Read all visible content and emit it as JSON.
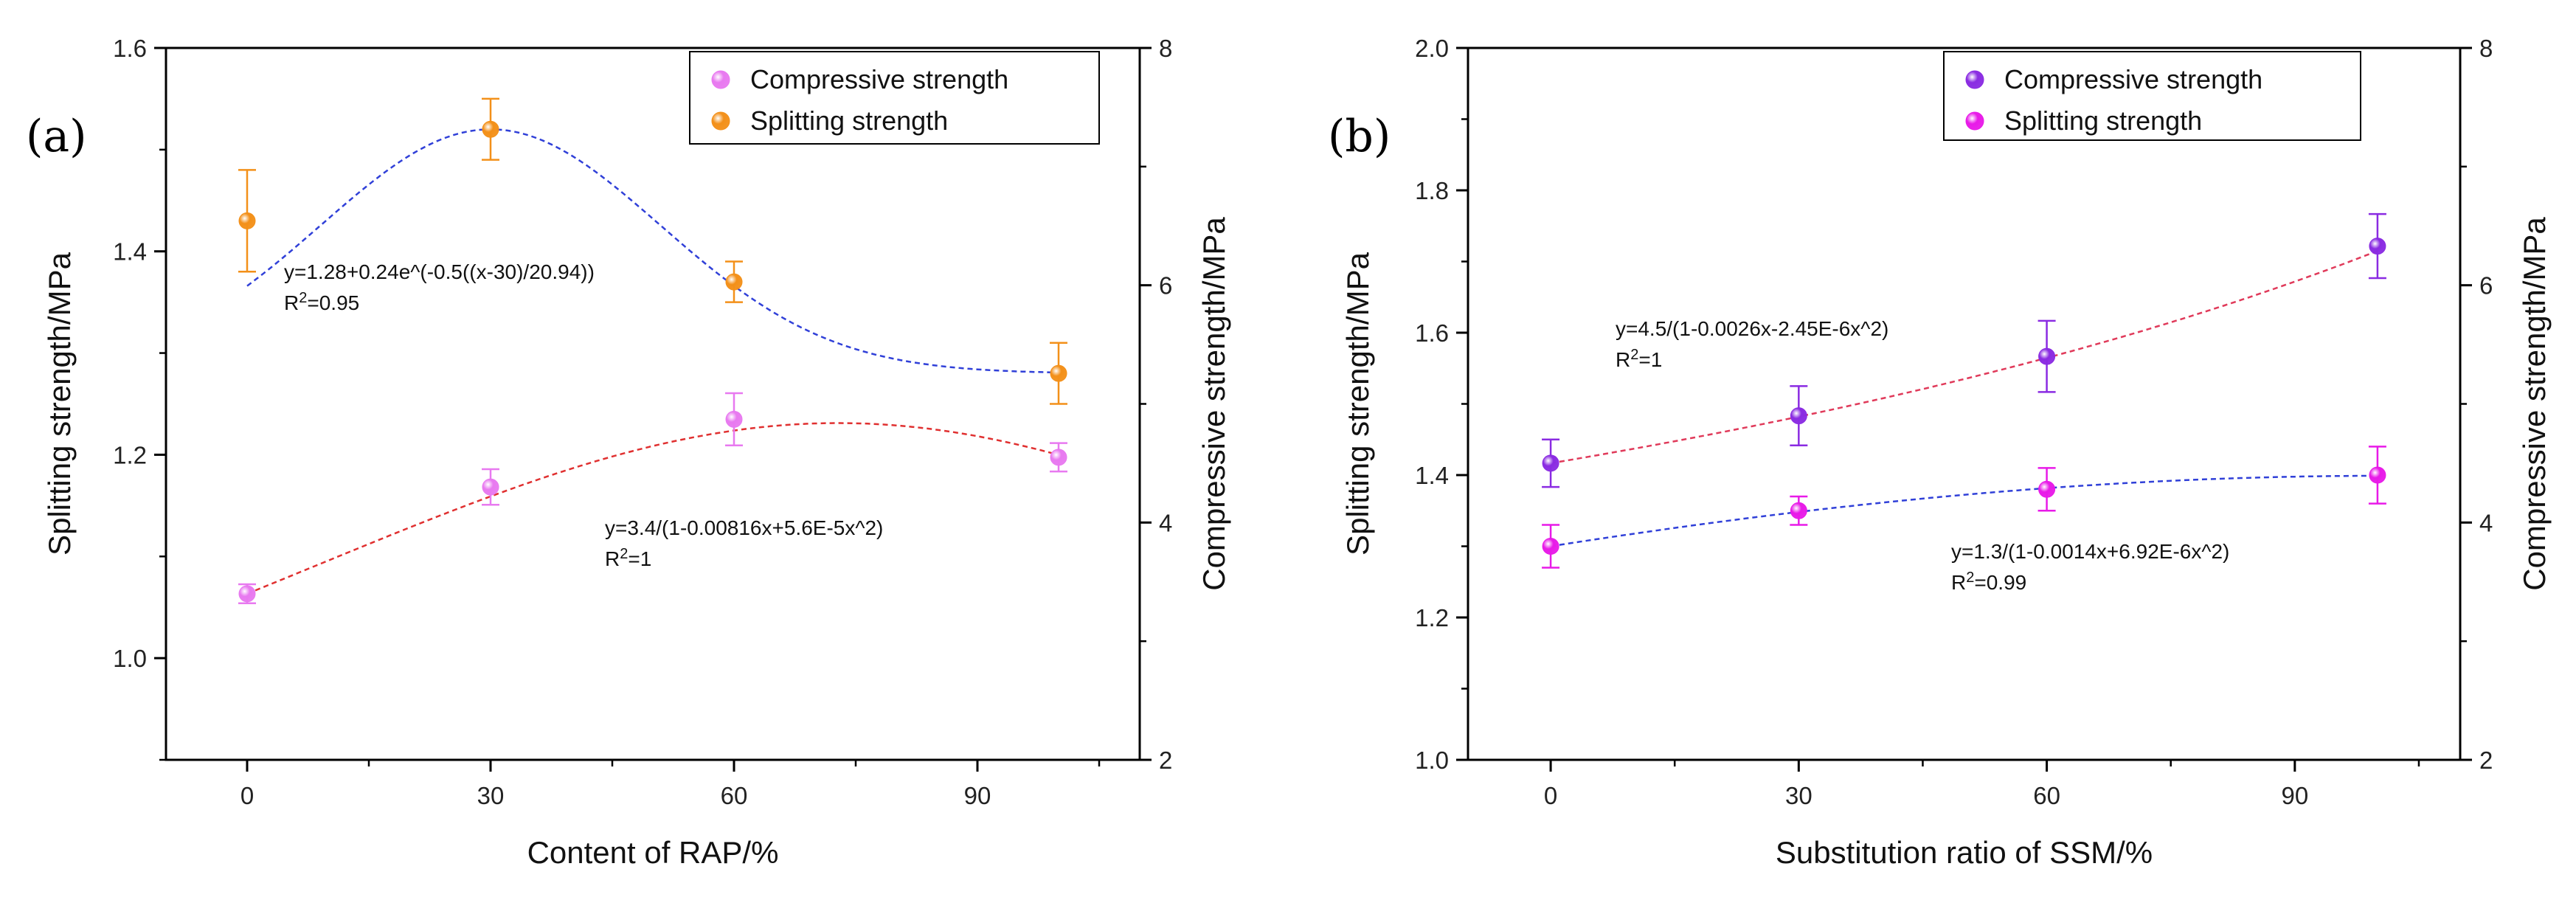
{
  "figure": {
    "panels": [
      "(a)",
      "(b)"
    ]
  },
  "chart_data": [
    {
      "panel": "(a)",
      "type": "scatter",
      "title": "",
      "xlabel": "Content of RAP/%",
      "ylabel_left": "Splitting strength/MPa",
      "ylabel_right": "Compressive strength/MPa",
      "xlim": [
        -10,
        110
      ],
      "ylim_left": [
        0.9,
        1.6
      ],
      "ylim_right": [
        2,
        8
      ],
      "xticks": [
        0,
        30,
        60,
        90
      ],
      "yticks_left": [
        "1.0",
        "1.2",
        "1.4",
        "1.6"
      ],
      "yticks_right": [
        "2",
        "4",
        "6",
        "8"
      ],
      "legend": {
        "position": "top-right"
      },
      "series": [
        {
          "name": "Compressive strength",
          "axis": "right",
          "color": "#e879f0",
          "x": [
            0,
            30,
            60,
            100
          ],
          "y": [
            3.4,
            4.3,
            4.87,
            4.55
          ],
          "err": [
            0.08,
            0.15,
            0.22,
            0.12
          ],
          "fit_color": "#e03030",
          "fit": {
            "kind": "rational",
            "a": 3.4,
            "b": -0.00816,
            "c": 5.6e-05
          },
          "fit_xrange": [
            0,
            100
          ],
          "equation": "y=3.4/(1-0.00816x+5.6E-5x^2)",
          "r2_value": "=1"
        },
        {
          "name": "Splitting strength",
          "axis": "left",
          "color": "#f39019",
          "x": [
            0,
            30,
            60,
            100
          ],
          "y": [
            1.43,
            1.52,
            1.37,
            1.28
          ],
          "err": [
            0.05,
            0.03,
            0.02,
            0.03
          ],
          "fit_color": "#3040d8",
          "fit": {
            "kind": "gauss",
            "y0": 1.28,
            "A": 0.24,
            "xc": 30,
            "w": 20.94
          },
          "fit_xrange": [
            0,
            100
          ],
          "equation": "y=1.28+0.24e^(-0.5((x-30)/20.94))",
          "r2_value": "=0.95"
        }
      ]
    },
    {
      "panel": "(b)",
      "type": "scatter",
      "title": "",
      "xlabel": "Substitution ratio of SSM/%",
      "ylabel_left": "Splitting strength/MPa",
      "ylabel_right": "Compressive strength/MPa",
      "xlim": [
        -10,
        110
      ],
      "ylim_left": [
        1.0,
        2.0
      ],
      "ylim_right": [
        2,
        8
      ],
      "xticks": [
        0,
        30,
        60,
        90
      ],
      "yticks_left": [
        "1.0",
        "1.2",
        "1.4",
        "1.6",
        "1.8",
        "2.0"
      ],
      "yticks_right": [
        "2",
        "4",
        "6",
        "8"
      ],
      "legend": {
        "position": "top-right"
      },
      "series": [
        {
          "name": "Compressive strength",
          "axis": "right",
          "color": "#8a2be2",
          "x": [
            0,
            30,
            60,
            100
          ],
          "y": [
            4.5,
            4.9,
            5.4,
            6.33
          ],
          "err": [
            0.2,
            0.25,
            0.3,
            0.27
          ],
          "fit_color": "#e03a5a",
          "fit": {
            "kind": "rational",
            "a": 4.5,
            "b": -0.0026,
            "c": -2.45e-06
          },
          "fit_xrange": [
            0,
            100
          ],
          "equation": "y=4.5/(1-0.0026x-2.45E-6x^2)",
          "r2_value": "=1"
        },
        {
          "name": "Splitting strength",
          "axis": "left",
          "color": "#e81ae8",
          "x": [
            0,
            30,
            60,
            100
          ],
          "y": [
            1.3,
            1.35,
            1.38,
            1.4
          ],
          "err": [
            0.03,
            0.02,
            0.03,
            0.04
          ],
          "fit_color": "#3040d8",
          "fit": {
            "kind": "rational",
            "a": 1.3,
            "b": -0.0014,
            "c": 6.92e-06
          },
          "fit_xrange": [
            0,
            100
          ],
          "equation": "y=1.3/(1-0.0014x+6.92E-6x^2)",
          "r2_value": "=0.99"
        }
      ]
    }
  ]
}
